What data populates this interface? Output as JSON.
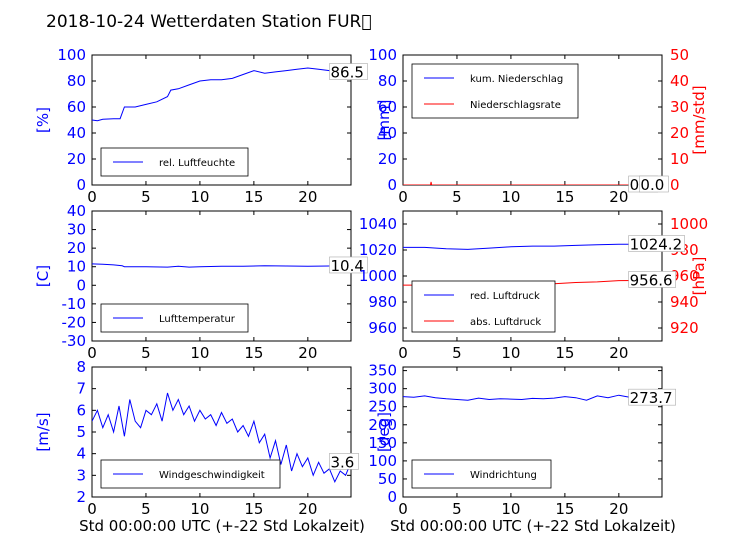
{
  "title": "2018-10-24 Wetterdaten Station FUR\u0000",
  "xlabel": "Std 00:00:00 UTC (+-22 Std Lokalzeit)",
  "colors": {
    "blue": "#0000ff",
    "red": "#ff0000",
    "black": "#000000"
  },
  "chart_data": [
    {
      "type": "line",
      "ylabel": "[%]",
      "ylim": [
        0,
        100
      ],
      "yticks": [
        0,
        20,
        40,
        60,
        80,
        100
      ],
      "xlim": [
        0,
        24
      ],
      "xticks": [
        0,
        5,
        10,
        15,
        20
      ],
      "legend": "bottom-left",
      "series": [
        {
          "name": "rel. Luftfeuchte",
          "color": "#0000ff",
          "x": [
            0,
            0.5,
            1,
            2,
            2.6,
            3,
            4,
            5,
            6,
            7,
            7.3,
            8,
            9,
            10,
            11,
            12,
            13,
            14,
            15,
            16,
            17,
            18,
            19,
            20,
            21,
            22,
            23,
            24
          ],
          "y": [
            50,
            49.5,
            50.5,
            51,
            51,
            60,
            60,
            62,
            64,
            68,
            73,
            74,
            77,
            80,
            81,
            81,
            82,
            85,
            88,
            86,
            87,
            88,
            89,
            90,
            89,
            88,
            86.5,
            86.5
          ]
        }
      ],
      "annotations": [
        {
          "text": "86.5",
          "x": 22.1,
          "y": 86.5
        }
      ]
    },
    {
      "type": "line",
      "ylabel": "[mm]",
      "ylabel2": "[mm/std]",
      "ylim": [
        0,
        100
      ],
      "yticks": [
        0,
        20,
        40,
        60,
        80,
        100
      ],
      "ylim2": [
        0,
        50
      ],
      "yticks2": [
        0,
        10,
        20,
        30,
        40,
        50
      ],
      "xlim": [
        0,
        24
      ],
      "xticks": [
        0,
        5,
        10,
        15,
        20
      ],
      "legend": "top-left",
      "series": [
        {
          "name": "kum. Niederschlag",
          "color": "#0000ff",
          "x": [
            0,
            24
          ],
          "y": [
            0,
            0
          ]
        },
        {
          "name": "Niederschlagsrate",
          "color": "#ff0000",
          "axis": "right",
          "x": [
            0,
            2.55,
            2.6,
            2.65,
            2.7,
            24
          ],
          "y": [
            0,
            0,
            1.2,
            0,
            0,
            0
          ]
        }
      ],
      "annotations": [
        {
          "text": "0.0",
          "x": 21.0,
          "y": 0
        },
        {
          "text": "0.0",
          "x": 22.0,
          "y": 0
        }
      ]
    },
    {
      "type": "line",
      "ylabel": "[C]",
      "ylim": [
        -30,
        40
      ],
      "yticks": [
        -30,
        -20,
        -10,
        0,
        10,
        20,
        30,
        40
      ],
      "xlim": [
        0,
        24
      ],
      "xticks": [
        0,
        5,
        10,
        15,
        20
      ],
      "legend": "bottom-left",
      "series": [
        {
          "name": "Lufttemperatur",
          "color": "#0000ff",
          "x": [
            0,
            1,
            2,
            2.8,
            3,
            5,
            7,
            8,
            9,
            10,
            12,
            14,
            16,
            18,
            20,
            22,
            24
          ],
          "y": [
            11.5,
            11.3,
            11.0,
            10.5,
            10.0,
            10.0,
            9.8,
            10.3,
            9.8,
            10.0,
            10.2,
            10.3,
            10.5,
            10.4,
            10.3,
            10.4,
            10.4
          ]
        }
      ],
      "annotations": [
        {
          "text": "10.4",
          "x": 22.1,
          "y": 10.4
        }
      ]
    },
    {
      "type": "line",
      "ylabel2": "[hPa]",
      "ylim": [
        950,
        1050
      ],
      "yticks": [
        960,
        980,
        1000,
        1020,
        1040
      ],
      "ylim2": [
        910,
        1010
      ],
      "yticks2": [
        920,
        940,
        960,
        980,
        1000
      ],
      "xlim": [
        0,
        24
      ],
      "xticks": [
        0,
        5,
        10,
        15,
        20
      ],
      "legend": "bottom-left",
      "series": [
        {
          "name": "red. Luftdruck",
          "color": "#0000ff",
          "x": [
            0,
            2,
            4,
            6,
            8,
            10,
            12,
            14,
            16,
            18,
            20,
            22,
            24
          ],
          "y": [
            1022,
            1022,
            1021,
            1020.5,
            1021.5,
            1022.5,
            1023,
            1023,
            1023.5,
            1024,
            1024.5,
            1024.5,
            1024.2
          ]
        },
        {
          "name": "abs. Luftdruck",
          "color": "#ff0000",
          "axis": "right",
          "x": [
            0,
            2,
            4,
            6,
            8,
            10,
            12,
            14,
            16,
            18,
            20,
            22,
            24
          ],
          "y": [
            953,
            953,
            952,
            951.5,
            952,
            953,
            953.5,
            954,
            955,
            955.5,
            956.5,
            956.6,
            956.6
          ]
        }
      ],
      "annotations": [
        {
          "text": "1024.2",
          "x": 21.0,
          "y": 1024.2,
          "axis": "left"
        },
        {
          "text": "956.6",
          "x": 21.0,
          "y": 956.6,
          "axis": "right"
        }
      ]
    },
    {
      "type": "line",
      "ylabel": "[m/s]",
      "ylim": [
        2,
        8
      ],
      "yticks": [
        2,
        3,
        4,
        5,
        6,
        7,
        8
      ],
      "xlim": [
        0,
        24
      ],
      "xticks": [
        0,
        5,
        10,
        15,
        20
      ],
      "legend": "bottom-left",
      "series": [
        {
          "name": "Windgeschwindigkeit",
          "color": "#0000ff",
          "x": [
            0,
            0.5,
            1,
            1.5,
            2,
            2.5,
            3,
            3.5,
            4,
            4.5,
            5,
            5.5,
            6,
            6.5,
            7,
            7.5,
            8,
            8.5,
            9,
            9.5,
            10,
            10.5,
            11,
            11.5,
            12,
            12.5,
            13,
            13.5,
            14,
            14.5,
            15,
            15.5,
            16,
            16.5,
            17,
            17.5,
            18,
            18.5,
            19,
            19.5,
            20,
            20.5,
            21,
            21.5,
            22,
            22.5,
            23,
            23.5,
            24
          ],
          "y": [
            5.5,
            6.0,
            5.2,
            5.8,
            5.0,
            6.2,
            4.8,
            6.5,
            5.5,
            5.2,
            6.0,
            5.8,
            6.3,
            5.5,
            6.8,
            6.0,
            6.5,
            5.8,
            6.2,
            5.5,
            6.0,
            5.6,
            5.8,
            5.3,
            5.9,
            5.4,
            5.6,
            5.0,
            5.3,
            4.8,
            5.5,
            4.5,
            4.9,
            3.8,
            4.6,
            3.5,
            4.4,
            3.2,
            4.0,
            3.4,
            3.8,
            3.0,
            3.6,
            3.1,
            3.3,
            2.7,
            3.2,
            3.0,
            3.6
          ]
        }
      ],
      "annotations": [
        {
          "text": "3.6",
          "x": 22.1,
          "y": 3.6
        }
      ]
    },
    {
      "type": "line",
      "ylabel": "[deg]",
      "ylim": [
        0,
        360
      ],
      "yticks": [
        0,
        50,
        100,
        150,
        200,
        250,
        300,
        350
      ],
      "xlim": [
        0,
        24
      ],
      "xticks": [
        0,
        5,
        10,
        15,
        20
      ],
      "legend": "bottom-left",
      "series": [
        {
          "name": "Windrichtung",
          "color": "#0000ff",
          "x": [
            0,
            1,
            2,
            3,
            4,
            5,
            6,
            7,
            8,
            9,
            10,
            11,
            12,
            13,
            14,
            15,
            16,
            17,
            18,
            19,
            20,
            21,
            22,
            23,
            24
          ],
          "y": [
            278,
            276,
            280,
            275,
            272,
            270,
            268,
            274,
            270,
            272,
            271,
            270,
            273,
            272,
            274,
            278,
            275,
            268,
            280,
            275,
            282,
            276,
            278,
            275,
            273.7
          ]
        }
      ],
      "annotations": [
        {
          "text": "273.7",
          "x": 21.0,
          "y": 273.7
        }
      ]
    }
  ]
}
